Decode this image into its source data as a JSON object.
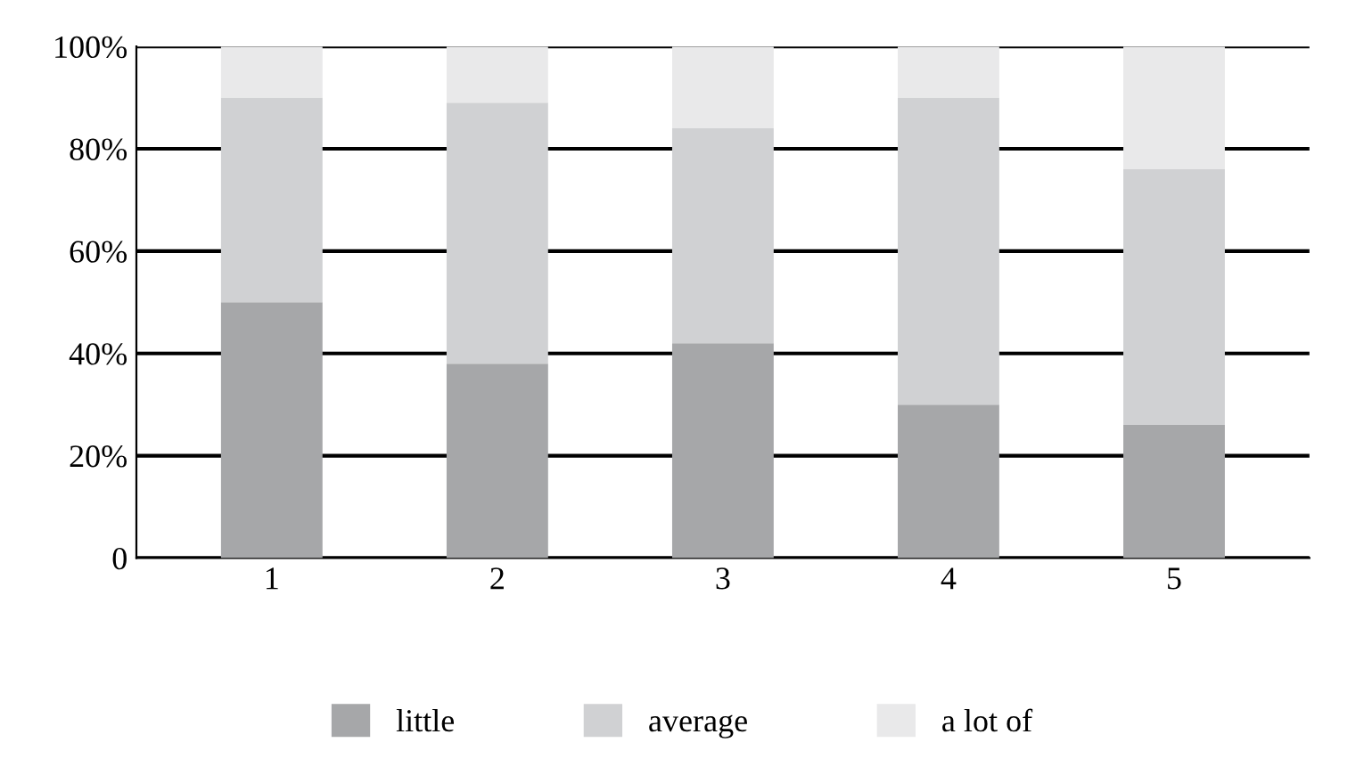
{
  "chart_data": {
    "type": "bar",
    "stacked": true,
    "categories": [
      "1",
      "2",
      "3",
      "4",
      "5"
    ],
    "series": [
      {
        "name": "little",
        "color": "#a6a7a9",
        "values": [
          50,
          38,
          42,
          30,
          26
        ]
      },
      {
        "name": "average",
        "color": "#d0d1d3",
        "values": [
          40,
          51,
          42,
          60,
          50
        ]
      },
      {
        "name": "a lot of",
        "color": "#e9e9ea",
        "values": [
          10,
          11,
          16,
          10,
          24
        ]
      }
    ],
    "ylim": [
      0,
      100
    ],
    "yticks": [
      {
        "value": 0,
        "label": "0"
      },
      {
        "value": 20,
        "label": "20%"
      },
      {
        "value": 40,
        "label": "40%"
      },
      {
        "value": 60,
        "label": "60%"
      },
      {
        "value": 80,
        "label": "80%"
      },
      {
        "value": 100,
        "label": "100%"
      }
    ],
    "grid": "y",
    "legend": "bottom"
  }
}
